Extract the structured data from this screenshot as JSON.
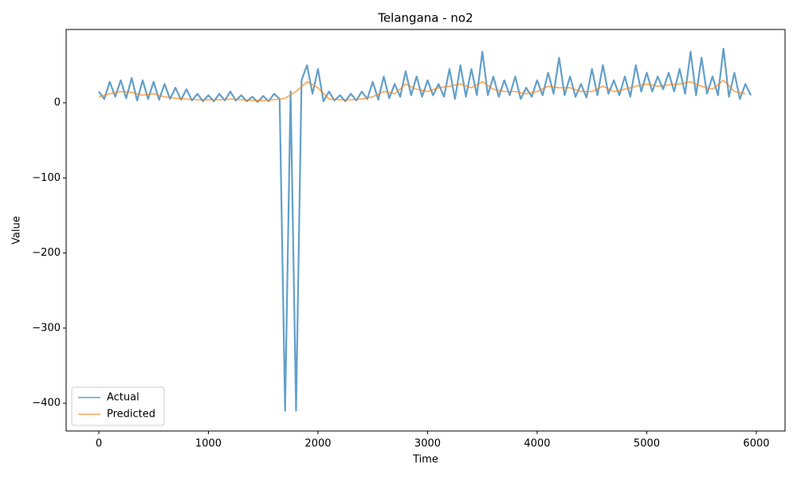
{
  "chart_data": {
    "type": "line",
    "title": "Telangana - no2",
    "x_label": "Time",
    "y_label": "Value",
    "xlim": [
      -298,
      6262
    ],
    "ylim": [
      -437,
      97.6
    ],
    "xticks": [
      0,
      1000,
      2000,
      3000,
      4000,
      5000,
      6000
    ],
    "yticks": [
      {
        "value": -400,
        "label": "−400"
      },
      {
        "value": -300,
        "label": "−300"
      },
      {
        "value": -200,
        "label": "−200"
      },
      {
        "value": -100,
        "label": "−100"
      },
      0
    ],
    "grid": false,
    "legend": "lower left",
    "series": [
      {
        "name": "Actual",
        "color": "#1f77b4",
        "x": [
          0,
          50,
          100,
          150,
          200,
          250,
          300,
          350,
          400,
          450,
          500,
          550,
          600,
          650,
          700,
          750,
          800,
          850,
          900,
          950,
          1000,
          1050,
          1100,
          1150,
          1200,
          1250,
          1300,
          1350,
          1400,
          1450,
          1500,
          1550,
          1600,
          1650,
          1700,
          1750,
          1800,
          1850,
          1900,
          1950,
          2000,
          2050,
          2100,
          2150,
          2200,
          2250,
          2300,
          2350,
          2400,
          2450,
          2500,
          2550,
          2600,
          2650,
          2700,
          2750,
          2800,
          2850,
          2900,
          2950,
          3000,
          3050,
          3100,
          3150,
          3200,
          3250,
          3300,
          3350,
          3400,
          3450,
          3500,
          3550,
          3600,
          3650,
          3700,
          3750,
          3800,
          3850,
          3900,
          3950,
          4000,
          4050,
          4100,
          4150,
          4200,
          4250,
          4300,
          4350,
          4400,
          4450,
          4500,
          4550,
          4600,
          4650,
          4700,
          4750,
          4800,
          4850,
          4900,
          4950,
          5000,
          5050,
          5100,
          5150,
          5200,
          5250,
          5300,
          5350,
          5400,
          5450,
          5500,
          5550,
          5600,
          5650,
          5700,
          5750,
          5800,
          5850,
          5900,
          5950
        ],
        "values": [
          15,
          5,
          28,
          8,
          30,
          6,
          33,
          3,
          30,
          5,
          28,
          4,
          25,
          5,
          20,
          4,
          18,
          3,
          12,
          2,
          10,
          2,
          12,
          3,
          15,
          3,
          10,
          2,
          8,
          1,
          9,
          2,
          12,
          5,
          -410,
          15,
          -410,
          30,
          50,
          12,
          45,
          2,
          15,
          3,
          10,
          2,
          12,
          3,
          15,
          5,
          28,
          4,
          35,
          6,
          25,
          8,
          42,
          10,
          35,
          8,
          30,
          10,
          25,
          8,
          45,
          5,
          50,
          8,
          45,
          10,
          68,
          10,
          35,
          8,
          30,
          10,
          35,
          5,
          20,
          8,
          30,
          10,
          40,
          12,
          60,
          10,
          35,
          8,
          25,
          7,
          45,
          10,
          50,
          12,
          30,
          10,
          35,
          8,
          50,
          15,
          40,
          15,
          35,
          18,
          40,
          15,
          45,
          12,
          68,
          10,
          60,
          12,
          35,
          10,
          72,
          8,
          40,
          5,
          25,
          10
        ]
      },
      {
        "name": "Predicted",
        "color": "#ff7f0e",
        "x": [
          0,
          100,
          200,
          300,
          400,
          500,
          600,
          700,
          800,
          900,
          1000,
          1100,
          1200,
          1300,
          1400,
          1500,
          1600,
          1700,
          1800,
          1900,
          2000,
          2100,
          2200,
          2300,
          2400,
          2500,
          2600,
          2700,
          2800,
          2900,
          3000,
          3100,
          3200,
          3300,
          3400,
          3500,
          3600,
          3700,
          3800,
          3900,
          4000,
          4100,
          4200,
          4300,
          4400,
          4500,
          4600,
          4700,
          4800,
          4900,
          5000,
          5100,
          5200,
          5300,
          5400,
          5500,
          5600,
          5700,
          5800,
          5900
        ],
        "values": [
          8,
          12,
          15,
          14,
          10,
          12,
          8,
          6,
          5,
          4,
          4,
          4,
          5,
          4,
          3,
          3,
          4,
          6,
          15,
          28,
          20,
          5,
          4,
          4,
          5,
          8,
          15,
          12,
          25,
          18,
          15,
          20,
          22,
          25,
          20,
          28,
          18,
          15,
          15,
          12,
          15,
          22,
          20,
          20,
          15,
          15,
          22,
          15,
          18,
          22,
          25,
          22,
          24,
          25,
          28,
          22,
          18,
          30,
          15,
          12
        ]
      }
    ]
  }
}
